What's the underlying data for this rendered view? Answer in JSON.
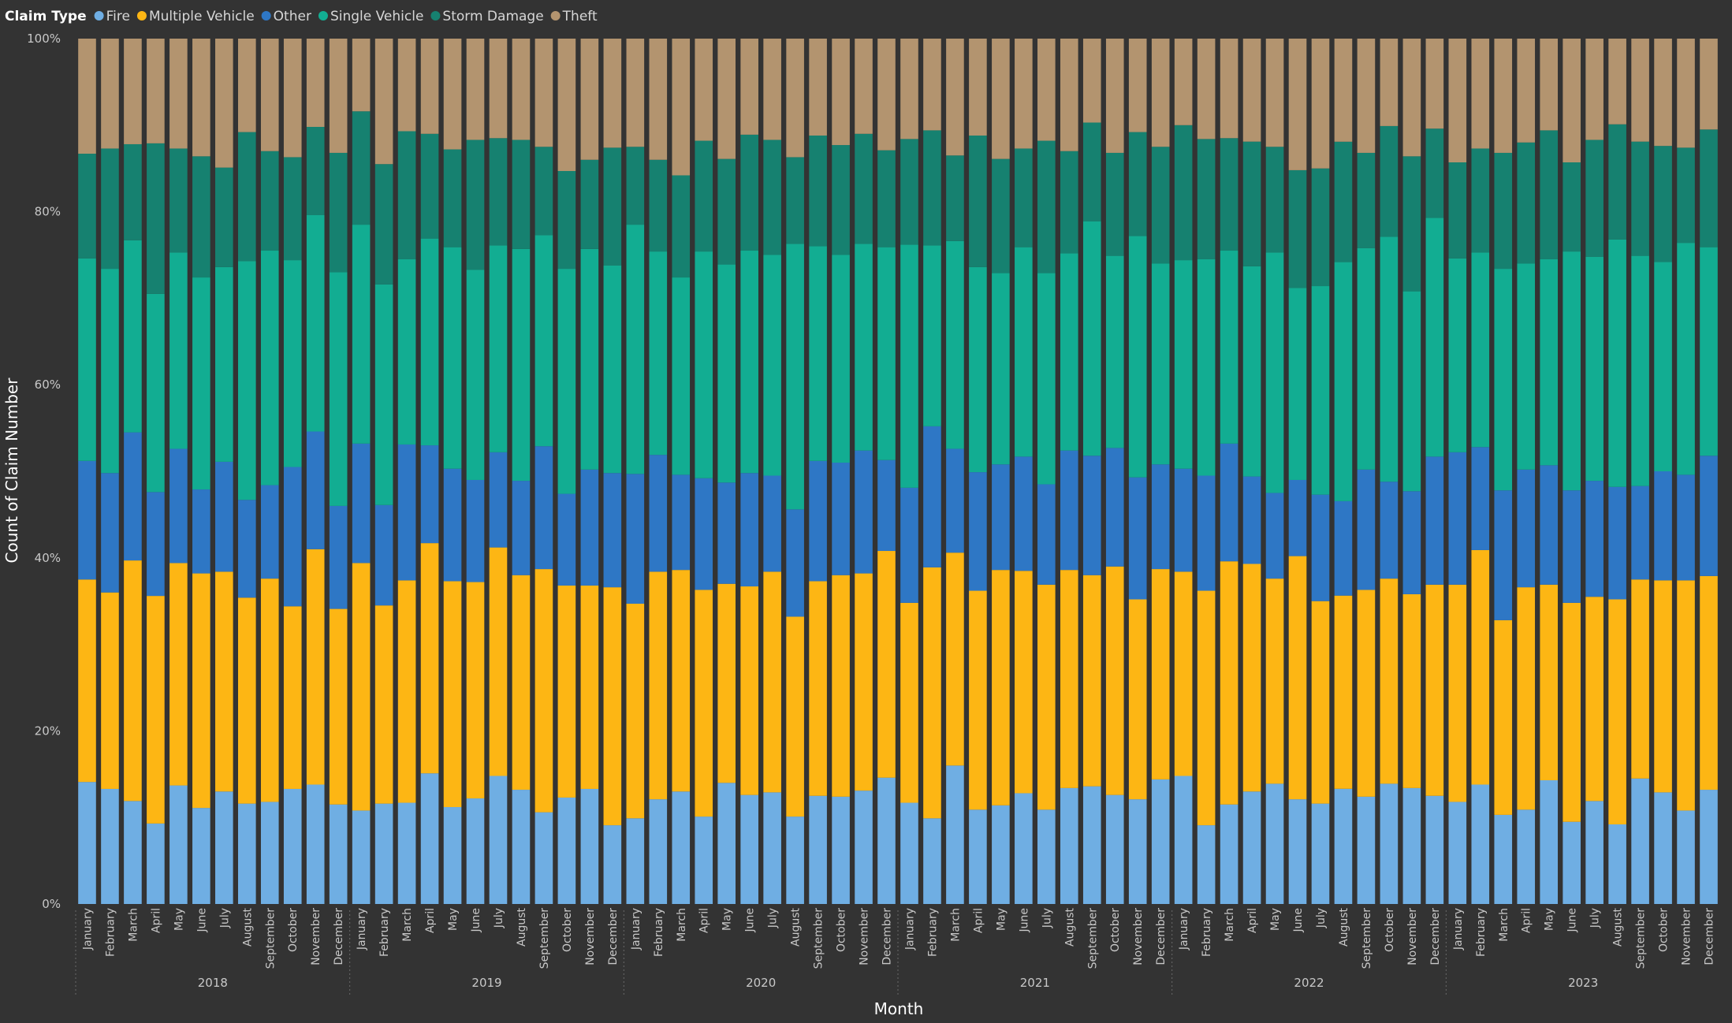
{
  "chart_data": {
    "type": "bar",
    "stacked": "percent",
    "legend": {
      "title": "Claim Type",
      "position": "top-left"
    },
    "xlabel": "Month",
    "ylabel": "Count of Claim Number",
    "ylim": [
      0,
      100
    ],
    "yticks": [
      "0%",
      "20%",
      "40%",
      "60%",
      "80%",
      "100%"
    ],
    "grid": false,
    "years": [
      "2018",
      "2019",
      "2020",
      "2021",
      "2022",
      "2023"
    ],
    "months": [
      "January",
      "February",
      "March",
      "April",
      "May",
      "June",
      "July",
      "August",
      "September",
      "October",
      "November",
      "December"
    ],
    "series": [
      {
        "name": "Fire",
        "color": "#6FAEE3",
        "values": [
          14.1,
          13.3,
          11.9,
          9.3,
          13.7,
          11.1,
          13.0,
          11.6,
          11.8,
          13.3,
          13.8,
          11.5,
          10.8,
          11.6,
          11.7,
          15.1,
          11.2,
          12.2,
          14.8,
          13.2,
          10.6,
          12.3,
          13.3,
          9.1,
          9.9,
          12.1,
          13.0,
          10.1,
          14.0,
          12.6,
          12.9,
          10.1,
          12.5,
          12.4,
          13.1,
          14.6,
          11.7,
          9.9,
          16.0,
          10.9,
          11.4,
          12.8,
          10.9,
          13.4,
          13.6,
          12.6,
          12.1,
          14.4,
          14.8,
          9.1,
          11.5,
          13.0,
          13.9,
          12.1,
          11.6,
          13.3,
          12.4,
          13.9,
          13.4,
          12.5,
          11.8,
          13.8,
          10.3,
          10.9,
          14.3,
          9.5,
          11.9,
          9.2,
          14.5,
          12.9,
          10.8,
          13.2
        ]
      },
      {
        "name": "Multiple Vehicle",
        "color": "#FDB614",
        "values": [
          23.4,
          22.7,
          27.8,
          26.3,
          25.7,
          27.1,
          25.4,
          23.8,
          25.8,
          21.1,
          27.2,
          22.6,
          28.6,
          22.9,
          25.7,
          26.6,
          26.1,
          25.0,
          26.4,
          24.8,
          28.1,
          24.5,
          23.5,
          27.5,
          24.8,
          26.3,
          25.6,
          26.2,
          23.0,
          24.1,
          25.5,
          23.1,
          24.8,
          25.6,
          25.1,
          26.2,
          23.1,
          29.0,
          24.6,
          25.3,
          27.2,
          25.7,
          26.0,
          25.2,
          24.4,
          26.4,
          23.1,
          24.3,
          23.6,
          27.1,
          28.1,
          26.3,
          23.7,
          28.1,
          23.4,
          22.3,
          23.9,
          23.7,
          22.4,
          24.4,
          25.1,
          27.1,
          22.5,
          25.7,
          22.6,
          25.3,
          23.6,
          26.0,
          23.0,
          24.5,
          26.6,
          24.7
        ]
      },
      {
        "name": "Other",
        "color": "#2E77C5",
        "values": [
          13.7,
          13.8,
          14.8,
          12.0,
          13.2,
          9.7,
          12.7,
          11.3,
          10.8,
          16.1,
          13.6,
          11.9,
          13.8,
          11.6,
          15.7,
          11.3,
          13.0,
          11.8,
          11.0,
          10.9,
          14.2,
          10.6,
          13.4,
          13.2,
          15.0,
          13.5,
          11.0,
          12.9,
          11.7,
          13.1,
          11.1,
          12.4,
          13.9,
          13.0,
          14.2,
          10.5,
          13.3,
          16.3,
          12.0,
          13.7,
          12.2,
          13.2,
          11.6,
          13.8,
          13.8,
          13.7,
          14.1,
          12.1,
          11.9,
          13.3,
          13.6,
          10.1,
          9.9,
          8.8,
          12.3,
          10.9,
          13.9,
          11.2,
          11.9,
          14.8,
          15.3,
          11.9,
          15.0,
          13.6,
          13.8,
          13.0,
          13.4,
          13.0,
          10.8,
          12.6,
          12.2,
          13.9
        ]
      },
      {
        "name": "Single Vehicle",
        "color": "#12AD92",
        "values": [
          23.4,
          23.6,
          22.2,
          22.9,
          22.7,
          24.5,
          22.5,
          27.6,
          27.1,
          23.9,
          25.0,
          27.0,
          25.3,
          25.5,
          21.4,
          23.9,
          25.6,
          24.3,
          23.9,
          26.8,
          24.4,
          26.0,
          25.5,
          24.0,
          28.8,
          23.5,
          22.8,
          26.2,
          25.2,
          25.7,
          25.5,
          30.7,
          24.8,
          24.0,
          23.9,
          24.6,
          28.1,
          20.9,
          24.0,
          23.7,
          22.1,
          24.2,
          24.4,
          22.8,
          27.1,
          22.2,
          27.9,
          23.2,
          24.1,
          25.0,
          22.3,
          24.3,
          27.8,
          22.2,
          24.1,
          27.6,
          25.6,
          28.3,
          23.1,
          27.6,
          22.4,
          22.5,
          25.6,
          23.8,
          23.8,
          27.6,
          25.9,
          28.6,
          26.6,
          24.2,
          26.8,
          24.1
        ]
      },
      {
        "name": "Storm Damage",
        "color": "#168170",
        "values": [
          12.1,
          13.9,
          11.1,
          17.4,
          12.0,
          14.0,
          11.5,
          14.9,
          11.5,
          11.9,
          10.2,
          13.8,
          13.1,
          13.9,
          14.8,
          12.1,
          11.3,
          15.0,
          12.4,
          12.6,
          10.2,
          11.3,
          10.3,
          13.6,
          9.0,
          10.6,
          11.8,
          12.8,
          12.2,
          13.4,
          13.3,
          10.0,
          12.8,
          12.7,
          12.7,
          11.2,
          12.2,
          13.3,
          9.9,
          15.2,
          13.2,
          11.4,
          15.3,
          11.8,
          11.4,
          11.9,
          12.0,
          13.5,
          15.6,
          13.9,
          13.0,
          14.4,
          12.2,
          13.6,
          13.6,
          13.9,
          11.0,
          12.8,
          15.6,
          10.3,
          11.1,
          12.0,
          13.4,
          14.0,
          14.9,
          10.3,
          13.5,
          13.3,
          13.2,
          13.4,
          11.0,
          13.6
        ]
      },
      {
        "name": "Theft",
        "color": "#B3946F",
        "values": [
          13.3,
          12.7,
          12.2,
          12.1,
          12.7,
          13.6,
          14.9,
          10.8,
          13.0,
          13.7,
          10.2,
          13.2,
          8.4,
          14.5,
          10.7,
          11.0,
          12.8,
          11.7,
          11.5,
          11.7,
          12.5,
          15.3,
          14.0,
          12.6,
          12.5,
          14.0,
          15.8,
          11.8,
          13.9,
          11.1,
          11.7,
          13.7,
          11.2,
          12.3,
          11.0,
          12.9,
          11.6,
          10.6,
          13.5,
          11.2,
          13.9,
          12.7,
          11.8,
          13.0,
          9.7,
          13.2,
          10.8,
          12.5,
          10.0,
          11.6,
          11.5,
          11.9,
          12.5,
          15.2,
          15.0,
          11.9,
          13.2,
          10.1,
          13.6,
          10.4,
          14.3,
          12.7,
          13.2,
          12.0,
          10.6,
          14.3,
          11.7,
          9.9,
          11.9,
          12.4,
          12.6,
          10.5
        ]
      }
    ]
  }
}
